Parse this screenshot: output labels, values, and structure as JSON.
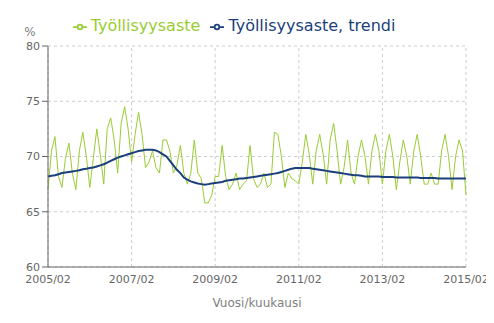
{
  "chart_data": {
    "type": "line",
    "xlabel": "Vuosi/kuukausi",
    "ylabel": "%",
    "categories": [
      "2005/02",
      null,
      null,
      null,
      null,
      null,
      null,
      null,
      null,
      null,
      null,
      null,
      null,
      null,
      null,
      null,
      null,
      null,
      null,
      null,
      null,
      null,
      null,
      null,
      "2007/02",
      null,
      null,
      null,
      null,
      null,
      null,
      null,
      null,
      null,
      null,
      null,
      null,
      null,
      null,
      null,
      null,
      null,
      null,
      null,
      null,
      null,
      null,
      null,
      "2009/02",
      null,
      null,
      null,
      null,
      null,
      null,
      null,
      null,
      null,
      null,
      null,
      null,
      null,
      null,
      null,
      null,
      null,
      null,
      null,
      null,
      null,
      null,
      null,
      "2011/02",
      null,
      null,
      null,
      null,
      null,
      null,
      null,
      null,
      null,
      null,
      null,
      null,
      null,
      null,
      null,
      null,
      null,
      null,
      null,
      null,
      null,
      null,
      null,
      "2013/02",
      null,
      null,
      null,
      null,
      null,
      null,
      null,
      null,
      null,
      null,
      null,
      null,
      null,
      null,
      null,
      null,
      null,
      null,
      null,
      null,
      null,
      null,
      null,
      "2015/02"
    ],
    "series": [
      {
        "name": "Työllisyysaste",
        "color": "#99cc33",
        "values": [
          67.0,
          70.5,
          71.8,
          68.2,
          67.2,
          69.8,
          71.2,
          68.5,
          67.0,
          70.5,
          72.2,
          70.0,
          67.2,
          69.8,
          72.5,
          70.2,
          67.5,
          72.5,
          73.5,
          71.5,
          68.5,
          73.0,
          74.5,
          72.5,
          69.5,
          72.0,
          74.0,
          72.0,
          69.0,
          69.5,
          70.5,
          69.0,
          68.5,
          71.5,
          71.5,
          70.5,
          68.5,
          69.2,
          71.0,
          68.5,
          67.5,
          68.5,
          71.5,
          68.5,
          68.0,
          65.8,
          65.8,
          66.5,
          68.2,
          68.2,
          71.0,
          68.2,
          67.0,
          67.5,
          68.5,
          67.0,
          67.5,
          67.8,
          71.0,
          68.0,
          67.2,
          67.5,
          68.5,
          67.2,
          67.5,
          72.2,
          72.0,
          70.0,
          67.2,
          68.5,
          68.0,
          67.8,
          67.5,
          69.5,
          72.0,
          70.2,
          67.5,
          70.5,
          72.0,
          70.2,
          67.5,
          71.5,
          73.0,
          70.5,
          67.5,
          69.0,
          71.5,
          68.5,
          67.5,
          70.0,
          71.5,
          70.0,
          67.5,
          70.5,
          72.0,
          70.5,
          67.5,
          70.5,
          72.0,
          70.0,
          67.0,
          69.5,
          71.5,
          70.0,
          67.5,
          70.5,
          72.0,
          70.0,
          67.5,
          67.5,
          68.5,
          67.5,
          67.5,
          70.5,
          72.0,
          70.0,
          67.0,
          70.0,
          71.5,
          70.5,
          66.5
        ]
      },
      {
        "name": "Työllisyysaste, trendi",
        "color": "#1a3f7a",
        "values": [
          68.2,
          68.25,
          68.3,
          68.4,
          68.5,
          68.55,
          68.6,
          68.65,
          68.7,
          68.75,
          68.85,
          68.9,
          68.95,
          69.0,
          69.1,
          69.2,
          69.3,
          69.45,
          69.6,
          69.75,
          69.9,
          70.0,
          70.1,
          70.2,
          70.3,
          70.4,
          70.5,
          70.55,
          70.6,
          70.6,
          70.6,
          70.55,
          70.4,
          70.2,
          70.0,
          69.6,
          69.2,
          68.8,
          68.5,
          68.1,
          67.9,
          67.75,
          67.65,
          67.55,
          67.5,
          67.45,
          67.5,
          67.55,
          67.6,
          67.65,
          67.7,
          67.8,
          67.85,
          67.9,
          67.95,
          68.0,
          68.0,
          68.05,
          68.1,
          68.15,
          68.2,
          68.25,
          68.3,
          68.35,
          68.4,
          68.45,
          68.5,
          68.6,
          68.7,
          68.8,
          68.9,
          68.95,
          68.95,
          68.95,
          68.95,
          68.95,
          68.9,
          68.85,
          68.8,
          68.75,
          68.7,
          68.65,
          68.6,
          68.55,
          68.5,
          68.45,
          68.4,
          68.35,
          68.3,
          68.3,
          68.25,
          68.2,
          68.2,
          68.2,
          68.2,
          68.2,
          68.15,
          68.15,
          68.15,
          68.15,
          68.1,
          68.1,
          68.1,
          68.1,
          68.1,
          68.1,
          68.1,
          68.05,
          68.05,
          68.05,
          68.05,
          68.05,
          68.0,
          68.0,
          68.0,
          68.0,
          68.0,
          68.0,
          68.0,
          68.0,
          68.0
        ]
      }
    ],
    "ylim": [
      60,
      80
    ],
    "yticks": [
      60,
      65,
      70,
      75,
      80
    ],
    "grid": true,
    "legend": "top"
  }
}
